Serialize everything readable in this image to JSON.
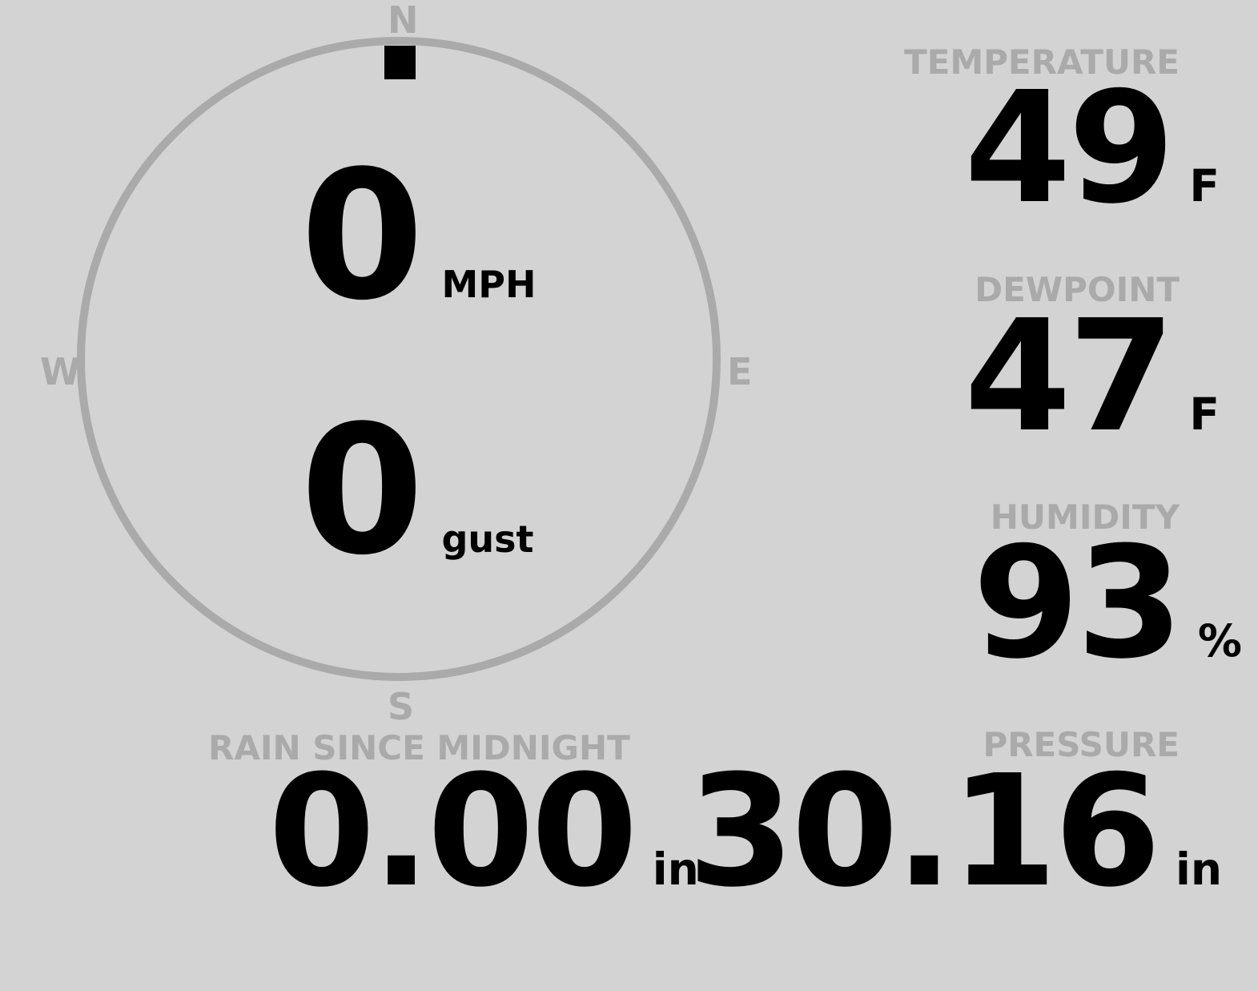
{
  "compass": {
    "north": "N",
    "east": "E",
    "south": "S",
    "west": "W",
    "wind_direction_degrees": 0,
    "ring_color": "#aaaaaa",
    "marker_color": "#000000"
  },
  "wind": {
    "speed": "0",
    "speed_unit": "MPH",
    "gust": "0",
    "gust_unit": "gust"
  },
  "temperature": {
    "label": "TEMPERATURE",
    "value": "49",
    "unit": "F"
  },
  "dewpoint": {
    "label": "DEWPOINT",
    "value": "47",
    "unit": "F"
  },
  "humidity": {
    "label": "HUMIDITY",
    "value": "93",
    "unit": "%"
  },
  "pressure": {
    "label": "PRESSURE",
    "value": "30.16",
    "unit": "in"
  },
  "rain": {
    "label": "RAIN SINCE MIDNIGHT",
    "value": "0.00",
    "unit": "in"
  },
  "colors": {
    "background": "#d3d3d3",
    "label": "#aaaaaa",
    "value": "#000000"
  }
}
